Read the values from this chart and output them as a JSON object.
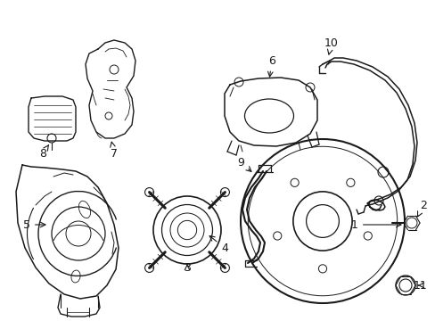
{
  "bg": "#ffffff",
  "lc": "#1a1a1a",
  "fig_w": 4.89,
  "fig_h": 3.6,
  "dpi": 100,
  "xlim": [
    0,
    489
  ],
  "ylim": [
    0,
    360
  ]
}
